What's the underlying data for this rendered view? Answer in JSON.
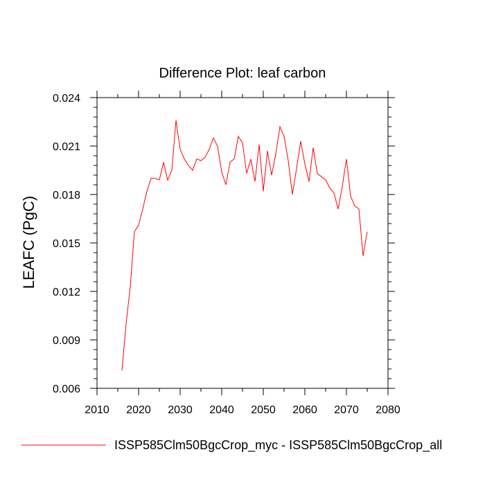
{
  "chart_data": {
    "type": "line",
    "title": "Difference Plot: leaf carbon",
    "xlabel": "",
    "ylabel": "LEAFC  (PgC)",
    "xlim": [
      2010,
      2080
    ],
    "ylim": [
      0.006,
      0.024
    ],
    "x_ticks": [
      2010,
      2020,
      2030,
      2040,
      2050,
      2060,
      2070,
      2080
    ],
    "x_tick_labels": [
      "2010",
      "2020",
      "2030",
      "2040",
      "2050",
      "2060",
      "2070",
      "2080"
    ],
    "y_ticks": [
      0.006,
      0.009,
      0.012,
      0.015,
      0.018,
      0.021,
      0.024
    ],
    "y_tick_labels": [
      "0.006",
      "0.009",
      "0.012",
      "0.015",
      "0.018",
      "0.021",
      "0.024"
    ],
    "grid": false,
    "legend_position": "bottom",
    "series": [
      {
        "name": "ISSP585Clm50BgcCrop_myc - ISSP585Clm50BgcCrop_all",
        "color": "#ff0000",
        "x": [
          2016,
          2017,
          2018,
          2019,
          2020,
          2021,
          2022,
          2023,
          2024,
          2025,
          2026,
          2027,
          2028,
          2029,
          2030,
          2031,
          2032,
          2033,
          2034,
          2035,
          2036,
          2037,
          2038,
          2039,
          2040,
          2041,
          2042,
          2043,
          2044,
          2045,
          2046,
          2047,
          2048,
          2049,
          2050,
          2051,
          2052,
          2053,
          2054,
          2055,
          2056,
          2057,
          2058,
          2059,
          2060,
          2061,
          2062,
          2063,
          2064,
          2065,
          2066,
          2067,
          2068,
          2069,
          2070,
          2071,
          2072,
          2073,
          2074,
          2075
        ],
        "values": [
          0.0071,
          0.01,
          0.0123,
          0.0157,
          0.0161,
          0.0171,
          0.0182,
          0.019,
          0.019,
          0.0189,
          0.02,
          0.0189,
          0.0195,
          0.0226,
          0.0208,
          0.0202,
          0.0198,
          0.0195,
          0.0202,
          0.0201,
          0.0203,
          0.0208,
          0.0215,
          0.021,
          0.0194,
          0.0186,
          0.02,
          0.0202,
          0.0216,
          0.0212,
          0.0193,
          0.0202,
          0.0188,
          0.0211,
          0.0182,
          0.0207,
          0.0192,
          0.0205,
          0.0222,
          0.0216,
          0.0201,
          0.018,
          0.0196,
          0.0213,
          0.0199,
          0.0188,
          0.0209,
          0.0193,
          0.0191,
          0.0189,
          0.0184,
          0.0181,
          0.0171,
          0.0185,
          0.0202,
          0.0179,
          0.0173,
          0.0171,
          0.0142,
          0.0157
        ]
      }
    ]
  }
}
